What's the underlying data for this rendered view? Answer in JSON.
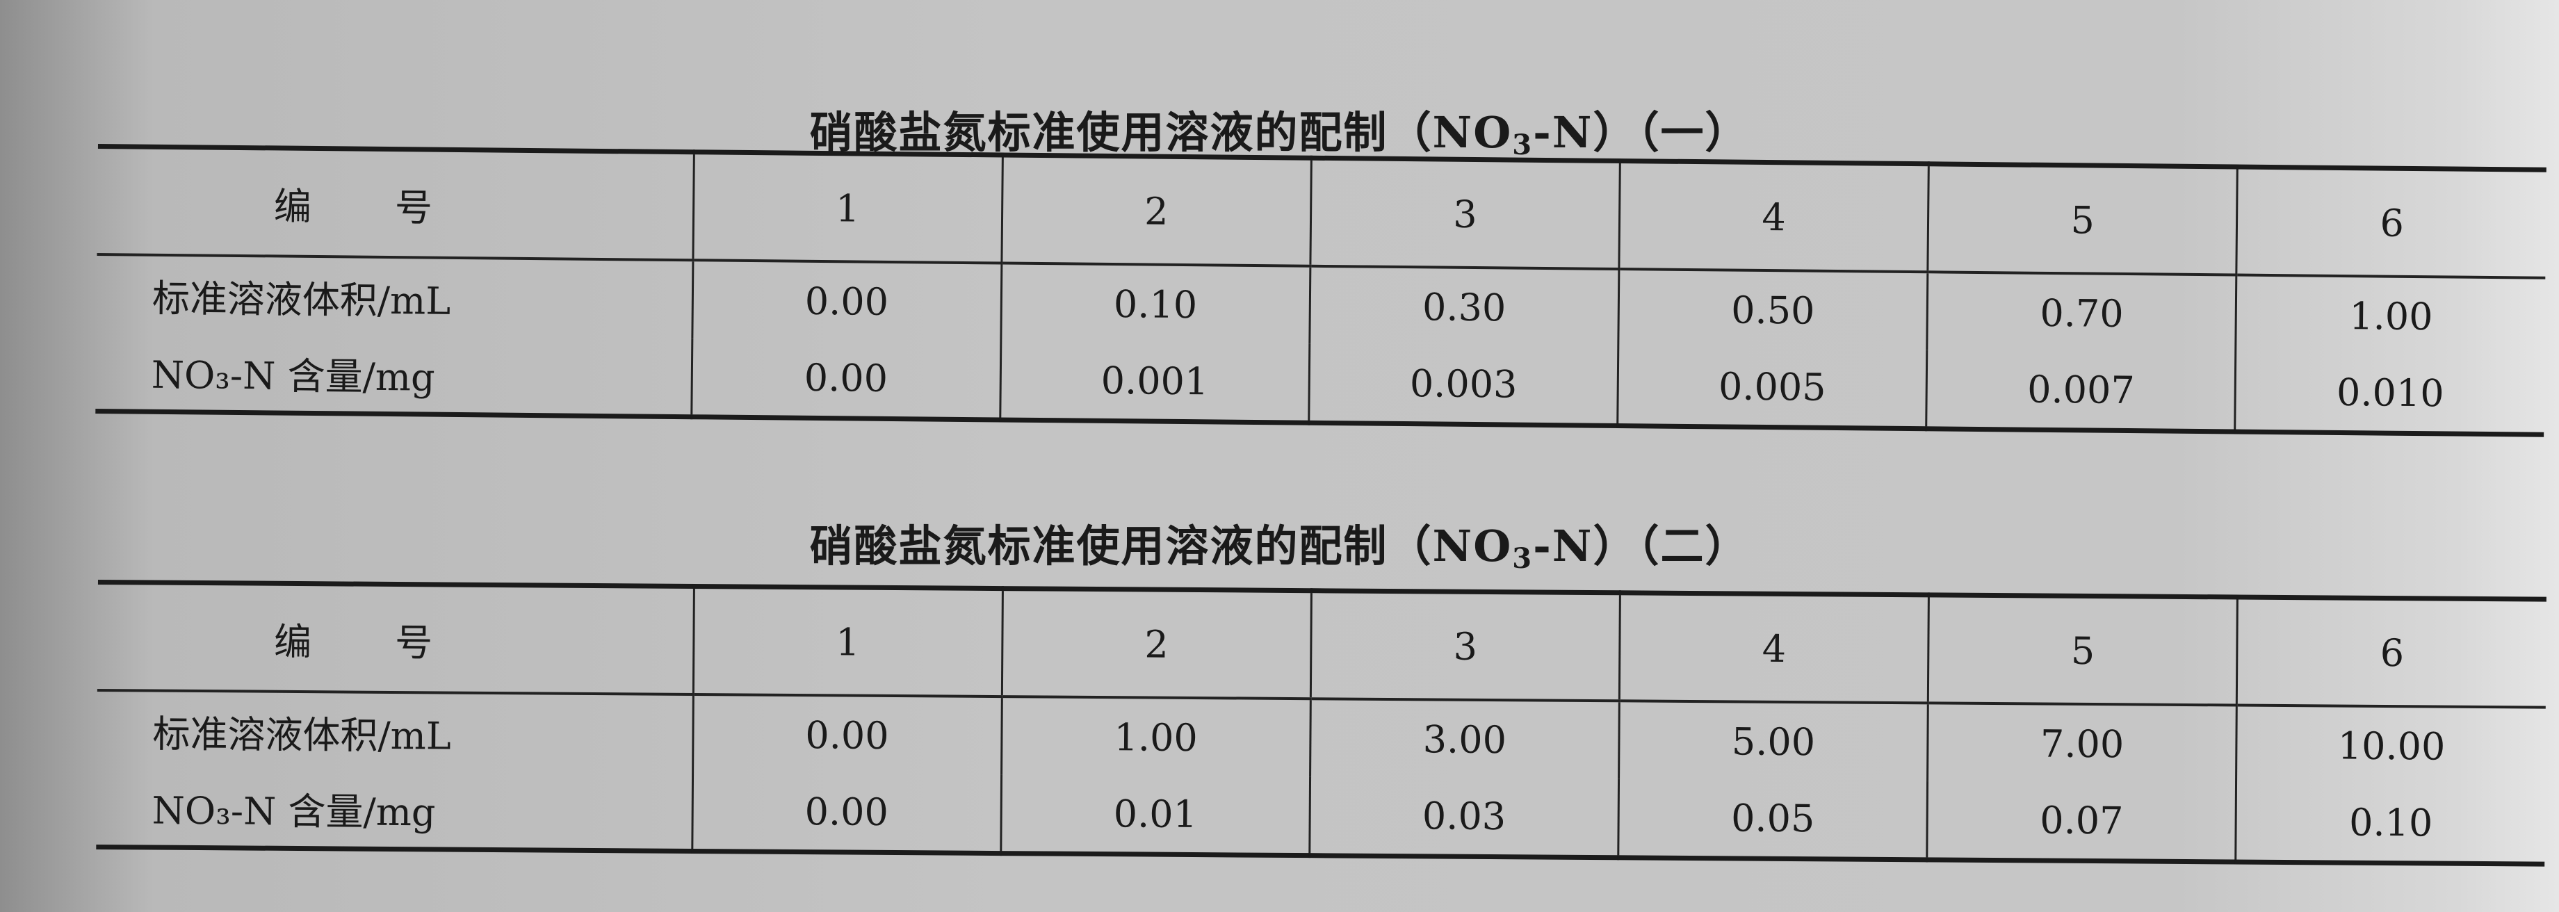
{
  "tables": [
    {
      "title_prefix": "硝酸盐氮标准使用溶液的配制（NO",
      "title_sub": "3",
      "title_suffix": "-N）（一）",
      "header_label": "编号",
      "columns": [
        "1",
        "2",
        "3",
        "4",
        "5",
        "6"
      ],
      "rows": [
        {
          "label": "标准溶液体积/mL",
          "values": [
            "0.00",
            "0.10",
            "0.30",
            "0.50",
            "0.70",
            "1.00"
          ]
        },
        {
          "label": "NO₃-N 含量/mg",
          "values": [
            "0.00",
            "0.001",
            "0.003",
            "0.005",
            "0.007",
            "0.010"
          ]
        }
      ]
    },
    {
      "title_prefix": "硝酸盐氮标准使用溶液的配制（NO",
      "title_sub": "3",
      "title_suffix": "-N）（二）",
      "header_label": "编号",
      "columns": [
        "1",
        "2",
        "3",
        "4",
        "5",
        "6"
      ],
      "rows": [
        {
          "label": "标准溶液体积/mL",
          "values": [
            "0.00",
            "1.00",
            "3.00",
            "5.00",
            "7.00",
            "10.00"
          ]
        },
        {
          "label": "NO₃-N 含量/mg",
          "values": [
            "0.00",
            "0.01",
            "0.03",
            "0.05",
            "0.07",
            "0.10"
          ]
        }
      ]
    }
  ]
}
